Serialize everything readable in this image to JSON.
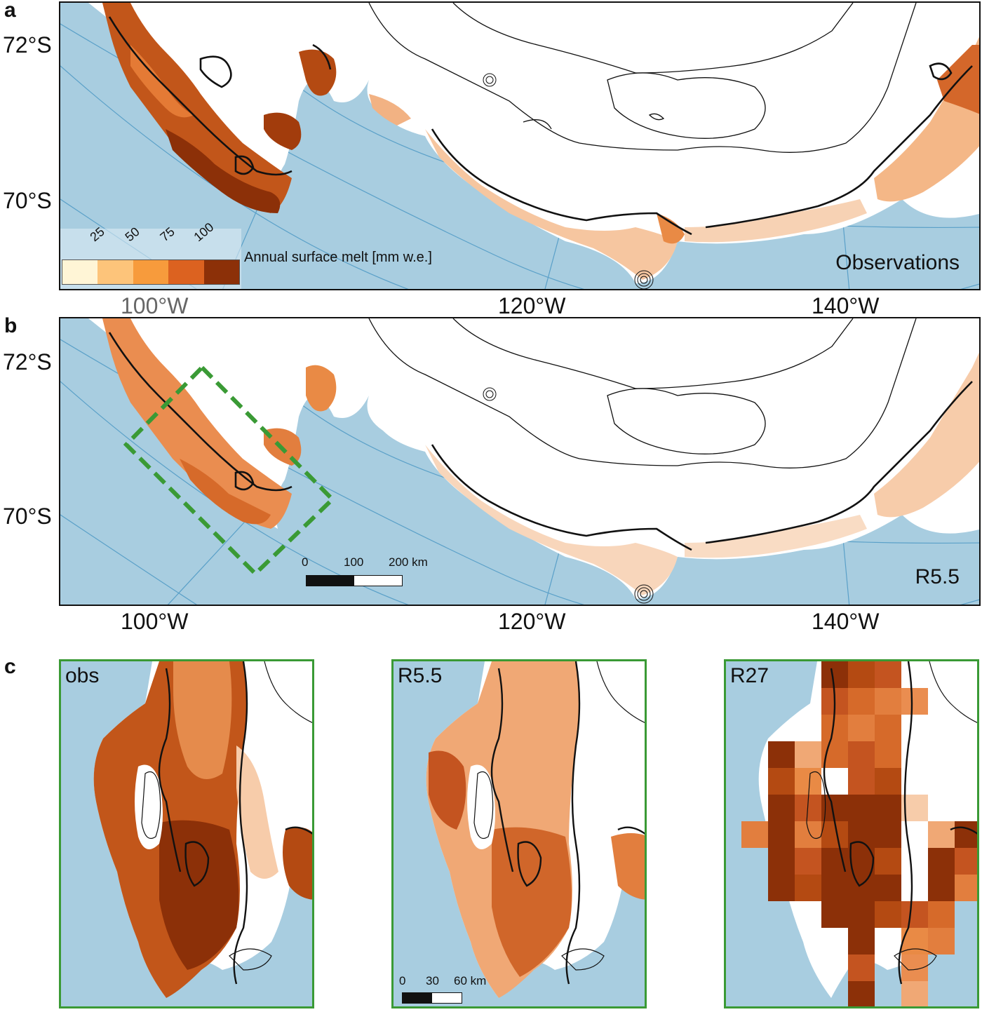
{
  "panels": {
    "a": {
      "label": "a",
      "title": "Observations"
    },
    "b": {
      "label": "b",
      "title": "R5.5"
    },
    "c": {
      "label": "c"
    }
  },
  "axes": {
    "latitudes": [
      "72°S",
      "70°S"
    ],
    "longitudes": [
      "100°W",
      "120°W",
      "140°W"
    ]
  },
  "legend": {
    "title": "Annual surface melt [mm w.e.]",
    "ticks": [
      "25",
      "50",
      "75",
      "100"
    ],
    "colors": [
      "#fff5d6",
      "#fdc47a",
      "#f79b3c",
      "#dc6220",
      "#8c3008"
    ]
  },
  "scalebar_b": {
    "labels": [
      "0",
      "100",
      "200 km"
    ]
  },
  "insets": [
    {
      "title": "obs"
    },
    {
      "title": "R5.5",
      "scalebar": [
        "0",
        "30",
        "60 km"
      ]
    },
    {
      "title": "R27"
    }
  ],
  "colors": {
    "ocean": "#a8cde0",
    "land": "#ffffff",
    "frame_green": "#3a9a35",
    "melt_light": "#fde2c8",
    "melt_mid": "#ef9a5a",
    "melt_dark": "#b24a12"
  }
}
